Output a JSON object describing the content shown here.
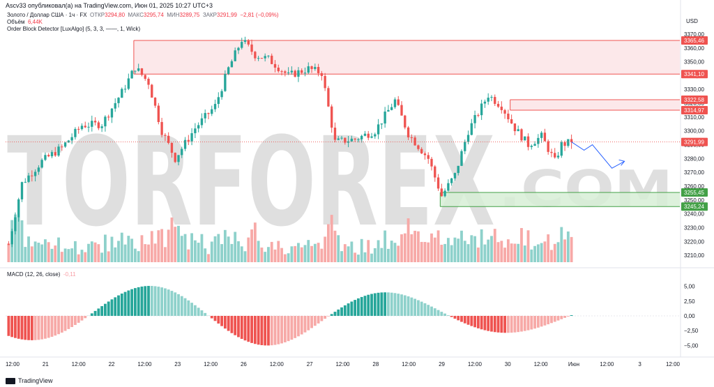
{
  "header": {
    "publisher_line": "Ascv33 опубликовал(а) на TradingView.com, Июн 01, 2025 10:27 UTC+3"
  },
  "legend": {
    "symbol": "Золото / Доллар США · 1ч · FX",
    "open_label": "ОТКР",
    "open": "3294,80",
    "high_label": "МАКС",
    "high": "3295,74",
    "low_label": "МИН",
    "low": "3289,75",
    "close_label": "ЗАКР",
    "close": "3291,99",
    "change": "−2,81 (−0,09%)",
    "volume_label": "Объём",
    "volume": "6,44K",
    "indicator": "Order Block Detector [LuxAlgo] (5, 3, 3, ——, 1, Wick)",
    "macd_label": "MACD (12, 26, close)",
    "macd_value": "-0,11"
  },
  "watermark": "TORFOREX.COM",
  "currency": "USD",
  "colors": {
    "up": "#26a69a",
    "down": "#ef5350",
    "up_light": "#8ed1cb",
    "down_light": "#f7a9a7",
    "bear_zone": "#fce4e6",
    "bull_zone": "#d7efd6",
    "projection": "#2962ff"
  },
  "price_axis": {
    "ticks": [
      "3370,00",
      "3360,00",
      "3350,00",
      "3340,00",
      "3330,00",
      "3320,00",
      "3310,00",
      "3300,00",
      "3290,00",
      "3280,00",
      "3270,00",
      "3260,00",
      "3250,00",
      "3240,00",
      "3230,00",
      "3220,00",
      "3210,00"
    ],
    "tags": [
      {
        "text": "3365,46",
        "price": 3365.46,
        "color": "#ef5350"
      },
      {
        "text": "3341,10",
        "price": 3341.1,
        "color": "#ef5350"
      },
      {
        "text": "3322,58",
        "price": 3322.58,
        "color": "#ef5350"
      },
      {
        "text": "3314,97",
        "price": 3314.97,
        "color": "#ef5350"
      },
      {
        "text": "3291,99",
        "price": 3291.99,
        "color": "#ef5350"
      },
      {
        "text": "3255,45",
        "price": 3255.45,
        "color": "#43a047"
      },
      {
        "text": "3245,24",
        "price": 3245.24,
        "color": "#43a047"
      }
    ]
  },
  "macd_axis": {
    "ticks": [
      "5,00",
      "2,50",
      "0,00",
      "−2,50",
      "−5,00"
    ],
    "values": [
      5,
      2.5,
      0,
      -2.5,
      -5
    ]
  },
  "time_axis": [
    "12:00",
    "21",
    "12:00",
    "22",
    "12:00",
    "23",
    "12:00",
    "26",
    "12:00",
    "27",
    "12:00",
    "28",
    "12:00",
    "29",
    "12:00",
    "30",
    "12:00",
    "Июн",
    "12:00",
    "3",
    "12:00"
  ],
  "zones": [
    {
      "type": "bear",
      "top": 3365.46,
      "bottom": 3341.1,
      "start": 38
    },
    {
      "type": "bear",
      "top": 3322.58,
      "bottom": 3314.97,
      "start": 151
    },
    {
      "type": "bull",
      "top": 3255.45,
      "bottom": 3245.24,
      "start": 130
    }
  ],
  "last_price": 3291.99,
  "footer": {
    "brand": "TradingView"
  }
}
